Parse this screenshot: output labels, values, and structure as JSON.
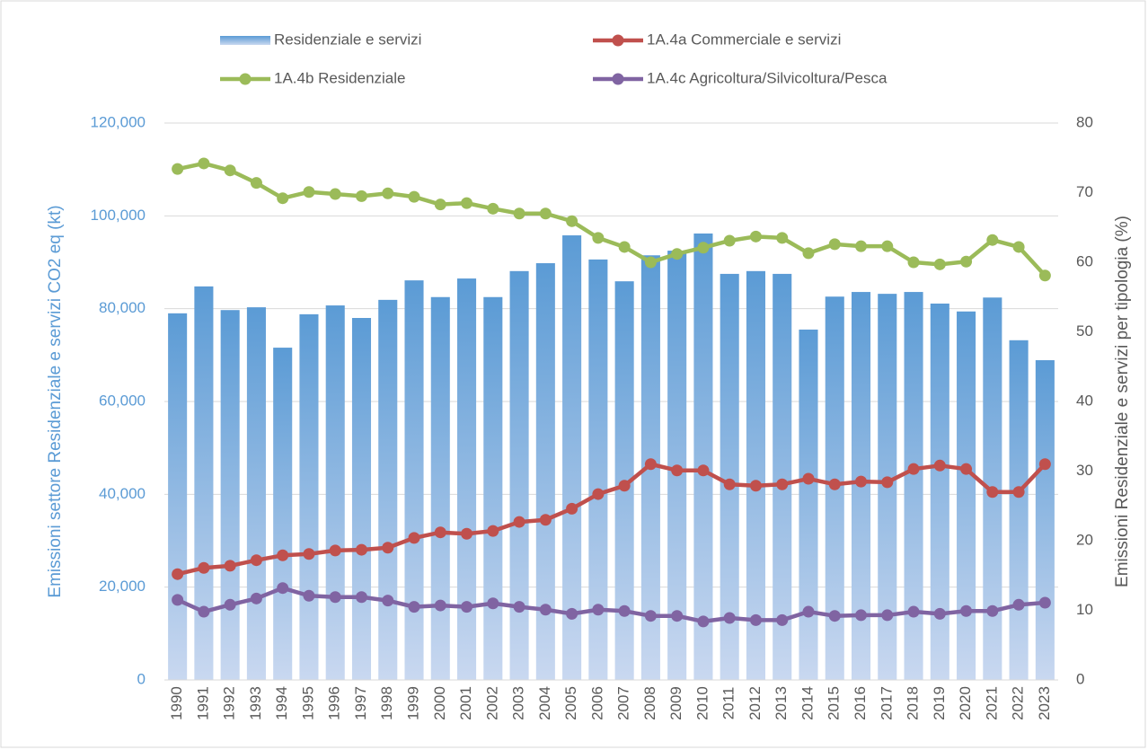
{
  "chart_data": {
    "type": "combo",
    "y_axis_title": "Emissioni settore Residenziale e servizi CO2 eq (kt)",
    "y2_axis_title": "Emissioni Residenziale e servizi per tipologia (%)",
    "categories": [
      "1990",
      "1991",
      "1992",
      "1993",
      "1994",
      "1995",
      "1996",
      "1997",
      "1998",
      "1999",
      "2000",
      "2001",
      "2002",
      "2003",
      "2004",
      "2005",
      "2006",
      "2007",
      "2008",
      "2009",
      "2010",
      "2011",
      "2012",
      "2013",
      "2014",
      "2015",
      "2016",
      "2017",
      "2018",
      "2019",
      "2020",
      "2021",
      "2022",
      "2023"
    ],
    "ylim": [
      0,
      120000
    ],
    "yticks": [
      0,
      {
        "value": 20000,
        "label": "20,000"
      },
      {
        "value": 40000,
        "label": "40,000"
      },
      {
        "value": 60000,
        "label": "60,000"
      },
      {
        "value": 80000,
        "label": "80,000"
      },
      {
        "value": 100000,
        "label": "100,000"
      },
      {
        "value": 120000,
        "label": "120,000"
      }
    ],
    "y2lim": [
      0,
      80
    ],
    "y2ticks": [
      0,
      10,
      20,
      30,
      40,
      50,
      60,
      70,
      80
    ],
    "grid": true,
    "series": [
      {
        "name": "Residenziale e servizi",
        "type": "bar",
        "color": "#5b9bd5",
        "values": [
          79000,
          84800,
          79700,
          80300,
          71600,
          78800,
          80700,
          78000,
          81900,
          86100,
          82500,
          86500,
          82500,
          88100,
          89800,
          95800,
          90600,
          85900,
          91500,
          92500,
          96200,
          87500,
          88100,
          87500,
          75500,
          82600,
          83600,
          83200,
          83600,
          81100,
          79400,
          82400,
          73200,
          68900
        ]
      },
      {
        "name": "1A.4a Commerciale e servizi",
        "type": "line",
        "axis": "y2",
        "color": "#c0504d",
        "values": [
          15.2,
          16.1,
          16.4,
          17.2,
          17.9,
          18.1,
          18.6,
          18.7,
          19.0,
          20.4,
          21.2,
          21.0,
          21.4,
          22.7,
          23.0,
          24.6,
          26.7,
          27.9,
          31.0,
          30.1,
          30.1,
          28.1,
          27.9,
          28.1,
          28.9,
          28.1,
          28.5,
          28.4,
          30.3,
          30.8,
          30.3,
          27.0,
          27.0,
          31.0
        ]
      },
      {
        "name": "1A.4b Residenziale",
        "type": "line",
        "axis": "y2",
        "color": "#9bbb59",
        "values": [
          73.4,
          74.2,
          73.2,
          71.4,
          69.2,
          70.1,
          69.8,
          69.5,
          69.9,
          69.4,
          68.3,
          68.5,
          67.7,
          67.0,
          67.0,
          65.9,
          63.5,
          62.2,
          60.0,
          61.2,
          62.1,
          63.1,
          63.7,
          63.5,
          61.3,
          62.6,
          62.3,
          62.3,
          60.0,
          59.7,
          60.1,
          63.2,
          62.2,
          58.1
        ]
      },
      {
        "name": "1A.4c Agricoltura/Silvicoltura/Pesca",
        "type": "line",
        "axis": "y2",
        "color": "#8064a2",
        "values": [
          11.5,
          9.8,
          10.8,
          11.7,
          13.2,
          12.1,
          11.9,
          11.9,
          11.4,
          10.5,
          10.7,
          10.5,
          11.0,
          10.5,
          10.1,
          9.5,
          10.1,
          9.9,
          9.2,
          9.2,
          8.4,
          8.9,
          8.6,
          8.6,
          9.8,
          9.2,
          9.3,
          9.3,
          9.8,
          9.5,
          9.9,
          9.9,
          10.8,
          11.1
        ]
      }
    ]
  }
}
